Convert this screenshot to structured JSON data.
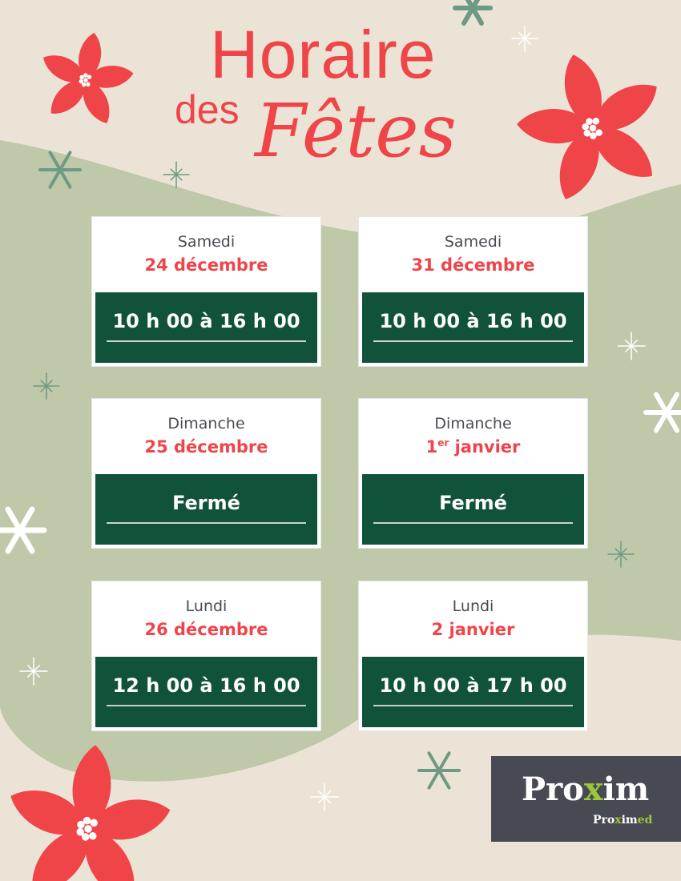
{
  "title": {
    "line1": "Horaire",
    "line2a": "des",
    "line2b": "Fêtes"
  },
  "colors": {
    "background": "#ebe4d6",
    "green_region": "#bfc8a8",
    "accent_red": "#ef4549",
    "hours_green": "#10533a",
    "logo_bg": "#474a53",
    "logo_green": "#9bc83a"
  },
  "schedule": [
    {
      "day": "Samedi",
      "date": "24 décembre",
      "hours": "10 h 00 à 16 h 00"
    },
    {
      "day": "Samedi",
      "date": "31 décembre",
      "hours": "10 h 00 à 16 h 00"
    },
    {
      "day": "Dimanche",
      "date": "25 décembre",
      "hours": "Fermé"
    },
    {
      "day": "Dimanche",
      "date_num": "1",
      "date_sup": "er",
      "date_rest": " janvier",
      "hours": "Fermé"
    },
    {
      "day": "Lundi",
      "date": "26 décembre",
      "hours": "12 h 00 à 16 h 00"
    },
    {
      "day": "Lundi",
      "date": "2 janvier",
      "hours": "10 h 00 à 17 h 00"
    }
  ],
  "logo": {
    "main_a": "Pro",
    "main_x": "x",
    "main_b": "im",
    "sub_a": "Pro",
    "sub_x": "x",
    "sub_b": "im",
    "sub_c": "ed"
  },
  "decor_icons": [
    "poinsettia-icon",
    "snowflake-icon",
    "sparkle-icon"
  ]
}
